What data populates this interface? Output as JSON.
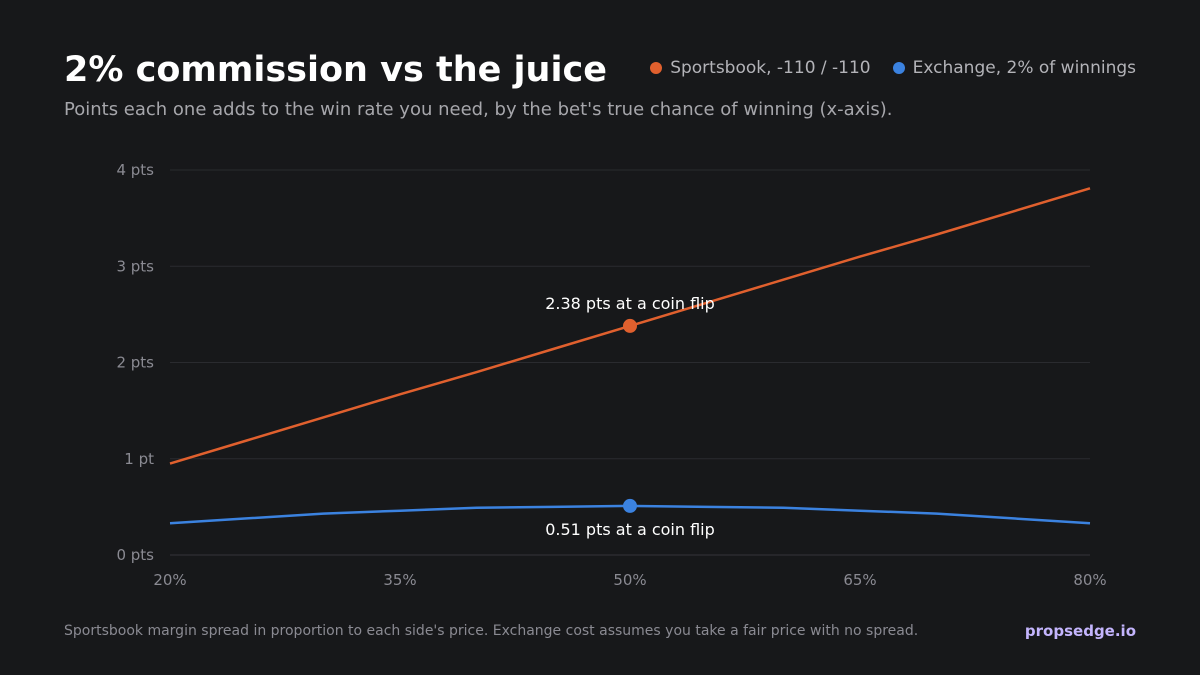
{
  "title": "2% commission vs the juice",
  "subtitle": "Points each one adds to the win rate you need, by the bet's true chance of winning (x-axis).",
  "legend": [
    {
      "label": "Sportsbook, -110 / -110",
      "color": "#e0602e"
    },
    {
      "label": "Exchange, 2% of winnings",
      "color": "#3b82e0"
    }
  ],
  "footnote": "Sportsbook margin spread in proportion to each side's price. Exchange cost assumes you take a fair price with no spread.",
  "brand": "propsedge.io",
  "chart_data": {
    "type": "line",
    "x_ticks": [
      {
        "value": 0.2,
        "label": "20%"
      },
      {
        "value": 0.35,
        "label": "35%"
      },
      {
        "value": 0.5,
        "label": "50%"
      },
      {
        "value": 0.65,
        "label": "65%"
      },
      {
        "value": 0.8,
        "label": "80%"
      }
    ],
    "y_ticks": [
      {
        "value": 0,
        "label": "0 pts"
      },
      {
        "value": 1,
        "label": "1 pt"
      },
      {
        "value": 2,
        "label": "2 pts"
      },
      {
        "value": 3,
        "label": "3 pts"
      },
      {
        "value": 4,
        "label": "4 pts"
      }
    ],
    "xlim": [
      0.2,
      0.8
    ],
    "ylim": [
      0,
      4
    ],
    "grid": true,
    "series": [
      {
        "name": "Sportsbook, -110 / -110",
        "color": "#e0602e",
        "x": [
          0.2,
          0.25,
          0.3,
          0.35,
          0.4,
          0.45,
          0.5,
          0.55,
          0.6,
          0.65,
          0.7,
          0.75,
          0.8
        ],
        "y": [
          0.95,
          1.19,
          1.43,
          1.67,
          1.9,
          2.14,
          2.38,
          2.62,
          2.86,
          3.1,
          3.33,
          3.57,
          3.81
        ]
      },
      {
        "name": "Exchange, 2% of winnings",
        "color": "#3b82e0",
        "x": [
          0.2,
          0.25,
          0.3,
          0.35,
          0.4,
          0.45,
          0.5,
          0.55,
          0.6,
          0.65,
          0.7,
          0.75,
          0.8
        ],
        "y": [
          0.33,
          0.38,
          0.43,
          0.46,
          0.49,
          0.5,
          0.51,
          0.5,
          0.49,
          0.46,
          0.43,
          0.38,
          0.33
        ]
      }
    ],
    "annotations": [
      {
        "x": 0.5,
        "y": 2.38,
        "series": 0,
        "text": "2.38 pts at a coin flip",
        "position": "above"
      },
      {
        "x": 0.5,
        "y": 0.51,
        "series": 1,
        "text": "0.51 pts at a coin flip",
        "position": "below"
      }
    ]
  }
}
